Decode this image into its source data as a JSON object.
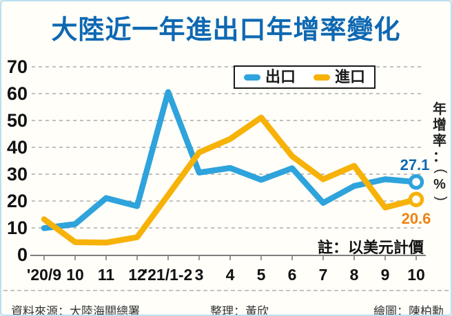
{
  "title": "大陸近一年進出口年增率變化",
  "note": "註：以美元計價",
  "end_labels": {
    "export": "27.1",
    "import": "20.6"
  },
  "y_axis_title": {
    "text": "年增率：(%)",
    "chars": [
      "年",
      "增",
      "率",
      "：",
      "(",
      "%",
      ")"
    ]
  },
  "footer": {
    "source": "資料來源：大陸海關總署",
    "editor": "整理：黃欣",
    "artist": "繪圖：陳柏勳"
  },
  "colors": {
    "title_blue": "#0e68b2",
    "export_line": "#2ea3dc",
    "import_line": "#f7b208",
    "import_label_orange": "#ef8310",
    "grid_gray": "#ababab",
    "axis_gray": "#7d7d7d",
    "frame_light_blue": "#bbdff2",
    "background": "#fffef9"
  },
  "chart_data": {
    "type": "line",
    "title": "大陸近一年進出口年增率變化",
    "categories": [
      "'20/9",
      "10",
      "11",
      "12",
      "'21/1-2",
      "3",
      "4",
      "5",
      "6",
      "7",
      "8",
      "9",
      "10"
    ],
    "series": [
      {
        "key": "export",
        "name": "出口",
        "color": "#2ea3dc",
        "values": [
          9.9,
          11.4,
          21.1,
          18.1,
          60.6,
          30.6,
          32.3,
          27.9,
          32.2,
          19.3,
          25.6,
          28.1,
          27.1
        ]
      },
      {
        "key": "import",
        "name": "進口",
        "color": "#f7b208",
        "values": [
          13.2,
          4.7,
          4.5,
          6.5,
          22.2,
          38.1,
          43.1,
          51.1,
          36.7,
          28.1,
          33.1,
          17.6,
          20.6
        ]
      }
    ],
    "xlabel": "",
    "ylabel": "年增率：(%)",
    "ylim": [
      0,
      70
    ],
    "yticks": [
      0,
      10,
      20,
      30,
      40,
      50,
      60,
      70
    ],
    "grid": "dashed-horizontal",
    "legend_position": "top-center-inside",
    "end_markers": "ring-on-last-point",
    "note": "註：以美元計價"
  }
}
